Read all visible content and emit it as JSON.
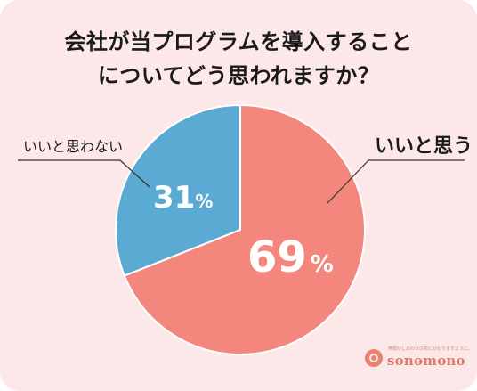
{
  "title_lines": [
    "会社が当プログラムを導入すること",
    "についてどう思われますか？"
  ],
  "colors": {
    "background": "#fce8e8",
    "yes": "#f4877d",
    "no": "#5aaad4",
    "text": "#1a1a1a"
  },
  "chart_data": {
    "type": "pie",
    "title": "会社が当プログラムを導入することについてどう思われますか？",
    "slices": [
      {
        "label": "いいと思う",
        "value": 69,
        "display_value": "69",
        "unit": "%",
        "color": "#f4877d"
      },
      {
        "label": "いいと思わない",
        "value": 31,
        "display_value": "31",
        "unit": "%",
        "color": "#5aaad4"
      }
    ],
    "start": "top",
    "direction": "clockwise"
  },
  "logo": {
    "tagline": "笑顔がしあわせの花にかわりますように。",
    "word": "sonomono",
    "icon": "flower-circle-icon"
  }
}
